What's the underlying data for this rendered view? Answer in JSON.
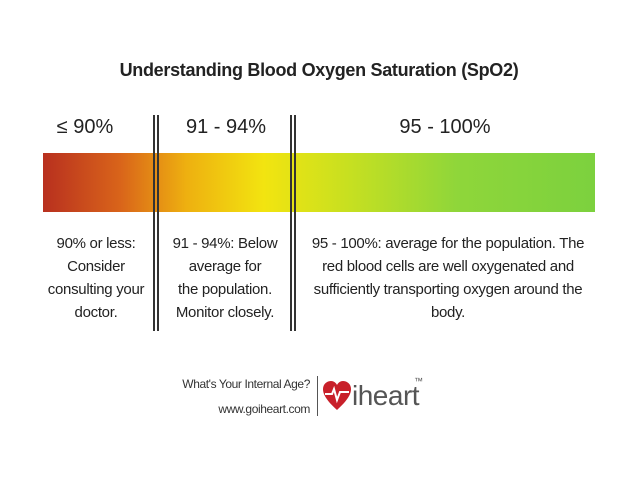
{
  "title": "Understanding Blood Oxygen Saturation (SpO2)",
  "ranges": [
    {
      "label": "≤ 90%",
      "description": [
        "90% or less:",
        "Consider",
        "consulting your",
        "doctor."
      ]
    },
    {
      "label": "91 - 94%",
      "description": [
        "91 - 94%: Below",
        "average for",
        "the population.",
        "Monitor closely."
      ]
    },
    {
      "label": "95 - 100%",
      "description": [
        "95 - 100%: average for the population. The",
        "red blood cells are well oxygenated and",
        "sufficiently transporting oxygen around the",
        "body."
      ]
    }
  ],
  "footer": {
    "tagline": "What's Your Internal Age?",
    "url": "www.goiheart.com",
    "brand": "iheart",
    "trademark": "™"
  }
}
